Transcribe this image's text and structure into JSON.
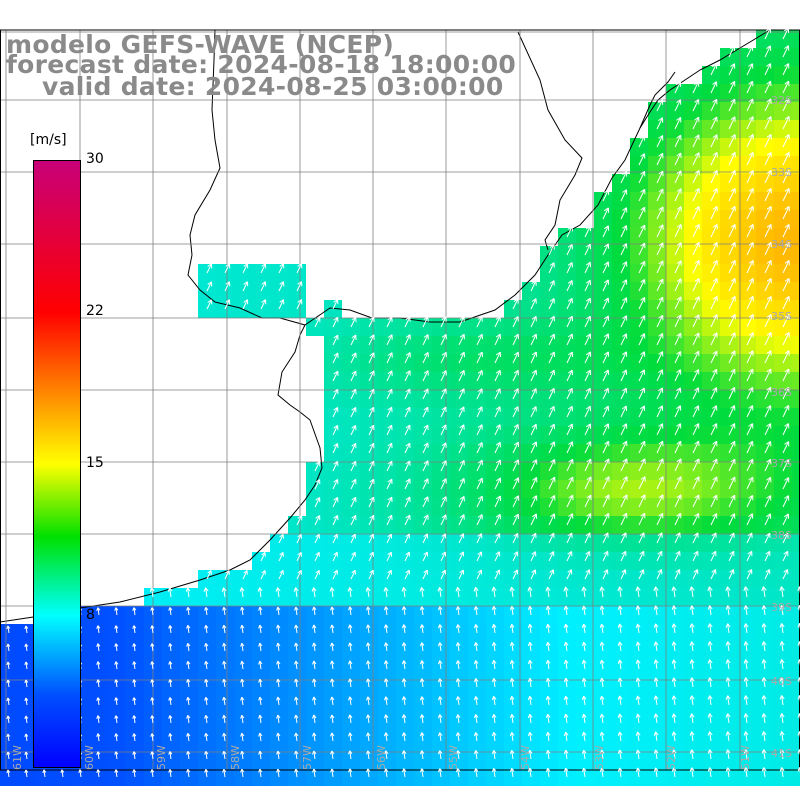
{
  "title": {
    "line1": "modelo GEFS-WAVE (NCEP)",
    "line2": "forecast date: 2024-08-18 18:00:00",
    "line3": "valid date: 2024-08-25 03:00:00"
  },
  "colorbar": {
    "unit": "[m/s]",
    "ticks": [
      "30",
      "22",
      "15",
      "8"
    ]
  },
  "map": {
    "lat_labels": [
      "32S",
      "33S",
      "34S",
      "35S",
      "36S",
      "37S",
      "38S",
      "39S",
      "40S",
      "41S"
    ],
    "lon_labels": [
      "61W",
      "60W",
      "59W",
      "58W",
      "57W",
      "56W",
      "55W",
      "54W",
      "53W",
      "52W",
      "51W"
    ],
    "grid_color": "#7f7f7f",
    "land_color": "#ffffff",
    "vector_color": "#ffffff"
  }
}
